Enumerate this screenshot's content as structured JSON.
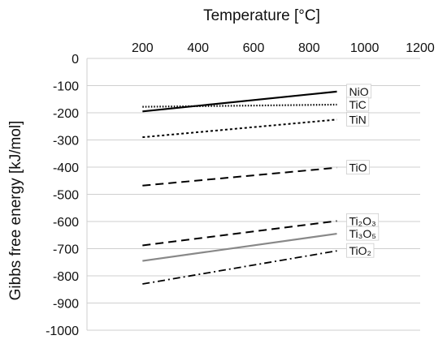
{
  "chart_data": {
    "type": "line",
    "xlabel": "Temperature [°C]",
    "ylabel": "Gibbs free energy [kJ/mol]",
    "xlim": [
      0,
      1200
    ],
    "ylim": [
      -1000,
      0
    ],
    "x_ticks": [
      200,
      400,
      600,
      800,
      1000,
      1200
    ],
    "y_ticks": [
      0,
      -100,
      -200,
      -300,
      -400,
      -500,
      -600,
      -700,
      -800,
      -900,
      -1000
    ],
    "x_axis_position": "top",
    "grid": "horizontal",
    "legend": "none (labels at line ends)",
    "series": [
      {
        "name": "NiO",
        "label_html": "NiO",
        "x": [
          200,
          900
        ],
        "y": [
          -195,
          -122
        ],
        "color": "#000000",
        "dash": "solid"
      },
      {
        "name": "TiC",
        "label_html": "TiC",
        "x": [
          200,
          900
        ],
        "y": [
          -178,
          -170
        ],
        "color": "#000000",
        "dash": "dotted"
      },
      {
        "name": "TiN",
        "label_html": "TiN",
        "x": [
          200,
          900
        ],
        "y": [
          -290,
          -225
        ],
        "color": "#000000",
        "dash": "short-dash"
      },
      {
        "name": "TiO",
        "label_html": "TiO",
        "x": [
          200,
          900
        ],
        "y": [
          -468,
          -402
        ],
        "color": "#000000",
        "dash": "long-dash"
      },
      {
        "name": "Ti2O3",
        "label_html": "Ti₂O₃",
        "x": [
          200,
          900
        ],
        "y": [
          -688,
          -598
        ],
        "color": "#000000",
        "dash": "long-dash"
      },
      {
        "name": "Ti3O5",
        "label_html": "Ti₃O₅",
        "x": [
          200,
          900
        ],
        "y": [
          -745,
          -645
        ],
        "color": "#888888",
        "dash": "solid"
      },
      {
        "name": "TiO2",
        "label_html": "TiO₂",
        "x": [
          200,
          900
        ],
        "y": [
          -830,
          -708
        ],
        "color": "#000000",
        "dash": "dash-dot"
      }
    ]
  }
}
